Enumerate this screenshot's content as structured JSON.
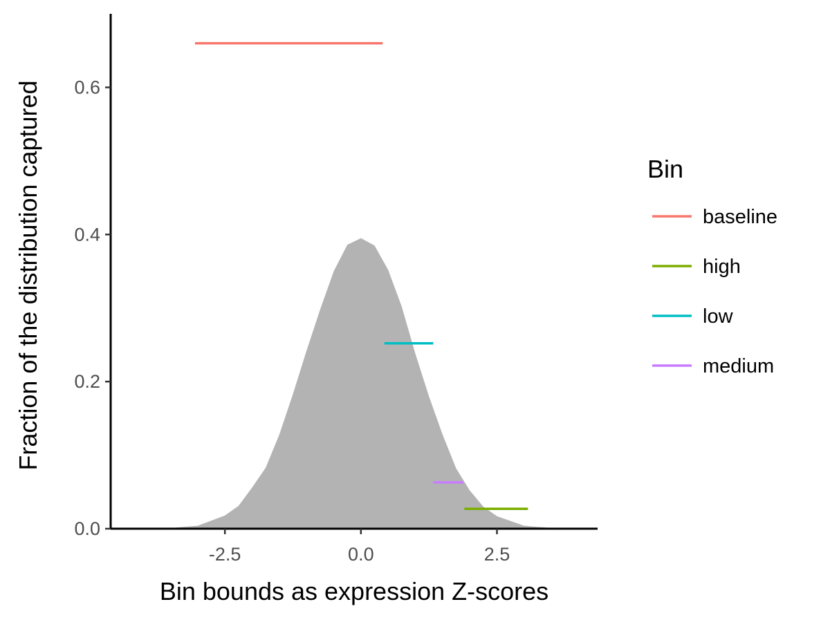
{
  "chart_data": {
    "type": "line",
    "title": "",
    "xlabel": "Bin bounds as expression Z-scores",
    "ylabel": "Fraction of the distribution captured",
    "xlim": [
      -4.6,
      4.35
    ],
    "ylim": [
      0,
      0.7
    ],
    "x_ticks": [
      -2.5,
      0.0,
      2.5
    ],
    "x_tick_labels": [
      "-2.5",
      "0.0",
      "2.5"
    ],
    "y_ticks": [
      0.0,
      0.2,
      0.4,
      0.6
    ],
    "y_tick_labels": [
      "0.0",
      "0.2",
      "0.4",
      "0.6"
    ],
    "grid": false,
    "legend": {
      "title": "Bin",
      "position": "right"
    },
    "density": {
      "color": "#b3b3b3",
      "x": [
        -4.5,
        -4.0,
        -3.5,
        -3.0,
        -2.5,
        -2.25,
        -2.0,
        -1.75,
        -1.5,
        -1.25,
        -1.0,
        -0.75,
        -0.5,
        -0.25,
        0.0,
        0.25,
        0.5,
        0.75,
        1.0,
        1.25,
        1.5,
        1.75,
        2.0,
        2.25,
        2.5,
        3.0,
        3.5,
        4.0,
        4.3
      ],
      "y": [
        0.0,
        0.0005,
        0.001,
        0.004,
        0.018,
        0.031,
        0.056,
        0.083,
        0.128,
        0.183,
        0.242,
        0.298,
        0.35,
        0.386,
        0.395,
        0.385,
        0.352,
        0.302,
        0.238,
        0.18,
        0.128,
        0.082,
        0.052,
        0.03,
        0.017,
        0.004,
        0.001,
        0.0002,
        0.0
      ]
    },
    "series": [
      {
        "name": "baseline",
        "color": "#F8766D",
        "x": [
          -3.05,
          0.4
        ],
        "y": [
          0.66,
          0.66
        ]
      },
      {
        "name": "high",
        "color": "#7CAE00",
        "x": [
          1.9,
          3.07
        ],
        "y": [
          0.027,
          0.027
        ]
      },
      {
        "name": "low",
        "color": "#00BFC4",
        "x": [
          0.43,
          1.33
        ],
        "y": [
          0.252,
          0.252
        ]
      },
      {
        "name": "medium",
        "color": "#C77CFF",
        "x": [
          1.33,
          1.88
        ],
        "y": [
          0.063,
          0.063
        ]
      }
    ]
  }
}
